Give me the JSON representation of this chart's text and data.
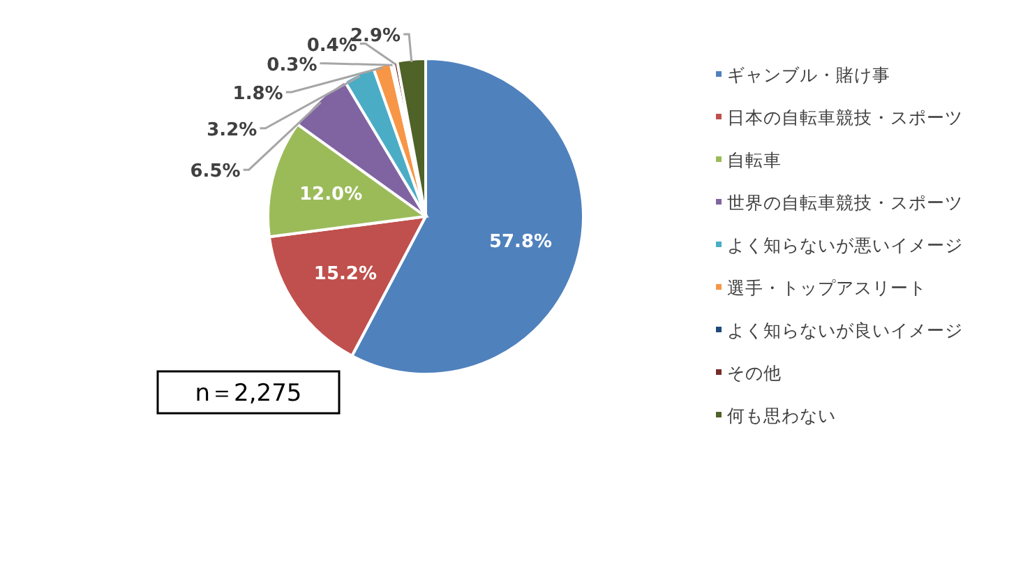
{
  "chart_data": {
    "type": "pie",
    "categories": [
      "ギャンブル・賭け事",
      "日本の自転車競技・スポーツ",
      "自転車",
      "世界の自転車競技・スポーツ",
      "よく知らないが悪いイメージ",
      "選手・トップアスリート",
      "よく知らないが良いイメージ",
      "その他",
      "何も思わない"
    ],
    "values": [
      57.8,
      15.2,
      12.0,
      6.5,
      3.2,
      1.8,
      0.3,
      0.4,
      2.9
    ],
    "colors": [
      "#4f81bd",
      "#c0504d",
      "#9bbb59",
      "#8064a2",
      "#4bacc6",
      "#f79646",
      "#1f497d",
      "#772c2a",
      "#4f6228"
    ],
    "value_labels": [
      "57.8%",
      "15.2%",
      "12.0%",
      "6.5%",
      "3.2%",
      "1.8%",
      "0.3%",
      "0.4%",
      "2.9%"
    ],
    "legend": "right",
    "annotations": [
      "n＝2,275"
    ]
  }
}
